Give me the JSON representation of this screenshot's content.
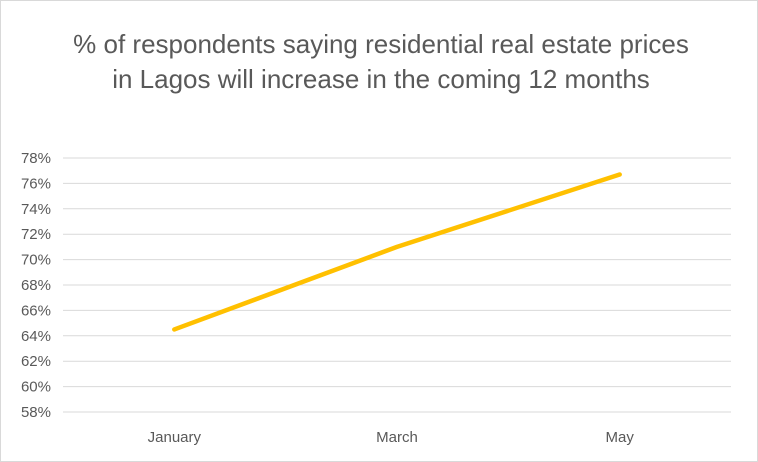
{
  "chart_data": {
    "type": "line",
    "title": "% of respondents saying residential real estate prices in Lagos will increase in the coming 12 months",
    "categories": [
      "January",
      "March",
      "May"
    ],
    "series": [
      {
        "values": [
          64.5,
          71.0,
          76.7
        ],
        "color": "#FFC000"
      }
    ],
    "ylim": [
      58,
      78
    ],
    "y_tick_step": 2,
    "y_tick_format": "percent",
    "grid": true,
    "legend": "none",
    "xlabel": "",
    "ylabel": ""
  }
}
